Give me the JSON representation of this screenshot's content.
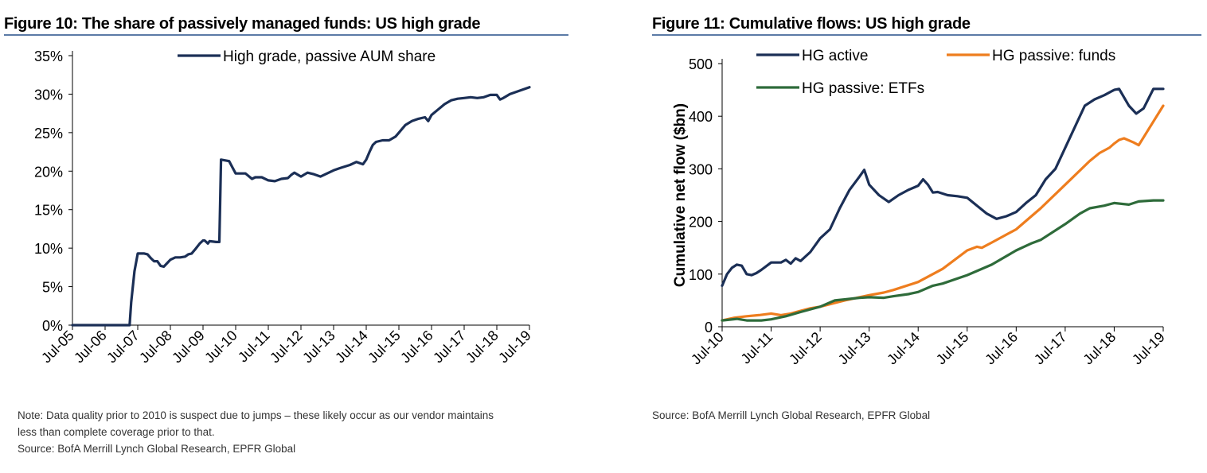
{
  "left": {
    "title": "Figure 10: The share of passively managed funds: US high grade",
    "note_lines": [
      "Note: Data quality prior to 2010 is suspect  due  to jumps – these likely occur as our vendor maintains",
      "less than complete coverage prior to that."
    ],
    "source": "Source:  BofA Merrill Lynch Global Research, EPFR Global"
  },
  "right": {
    "title": "Figure 11: Cumulative flows: US high grade",
    "source": "Source:  BofA Merrill Lynch Global Research, EPFR  Global"
  },
  "colors": {
    "navy": "#1b2f56",
    "orange": "#ee7d1e",
    "green": "#2e6b3a",
    "rule": "#5b7aa6"
  },
  "chart_data": [
    {
      "type": "line",
      "title": "Figure 10: The share of passively managed funds: US high grade",
      "xlabel": "",
      "ylabel": "",
      "x_ticks": [
        "Jul-05",
        "Jul-06",
        "Jul-07",
        "Jul-08",
        "Jul-09",
        "Jul-10",
        "Jul-11",
        "Jul-12",
        "Jul-13",
        "Jul-14",
        "Jul-15",
        "Jul-16",
        "Jul-17",
        "Jul-18",
        "Jul-19"
      ],
      "y_ticks": [
        "0%",
        "5%",
        "10%",
        "15%",
        "20%",
        "25%",
        "30%",
        "35%"
      ],
      "xlim": [
        0,
        14
      ],
      "ylim": [
        0,
        35
      ],
      "legend_position": "top",
      "series": [
        {
          "name": "High grade, passive AUM share",
          "color": "#1b2f56",
          "x": [
            0,
            1,
            1.75,
            1.8,
            1.9,
            2.0,
            2.2,
            2.3,
            2.4,
            2.5,
            2.6,
            2.7,
            2.8,
            3.0,
            3.15,
            3.3,
            3.45,
            3.55,
            3.65,
            3.75,
            3.9,
            4.0,
            4.05,
            4.1,
            4.15,
            4.2,
            4.4,
            4.5,
            4.55,
            4.8,
            5.0,
            5.1,
            5.2,
            5.3,
            5.5,
            5.6,
            5.8,
            6.0,
            6.2,
            6.4,
            6.6,
            6.7,
            6.8,
            7.0,
            7.2,
            7.4,
            7.6,
            7.8,
            8.0,
            8.2,
            8.5,
            8.7,
            8.9,
            9.0,
            9.1,
            9.2,
            9.3,
            9.5,
            9.7,
            9.9,
            10.0,
            10.2,
            10.4,
            10.6,
            10.8,
            10.9,
            11.0,
            11.2,
            11.4,
            11.6,
            11.8,
            12.0,
            12.2,
            12.4,
            12.6,
            12.8,
            13.0,
            13.1,
            13.2,
            13.4,
            13.6,
            13.8,
            14.0
          ],
          "y": [
            0,
            0,
            0,
            3,
            7,
            9.3,
            9.3,
            9.2,
            8.7,
            8.3,
            8.3,
            7.7,
            7.6,
            8.5,
            8.8,
            8.8,
            8.9,
            9.2,
            9.3,
            9.8,
            10.6,
            11.0,
            11.0,
            10.8,
            10.6,
            10.9,
            10.8,
            10.8,
            21.5,
            21.3,
            19.7,
            19.7,
            19.7,
            19.7,
            19.0,
            19.2,
            19.2,
            18.8,
            18.7,
            19.0,
            19.1,
            19.5,
            19.8,
            19.3,
            19.8,
            19.6,
            19.3,
            19.7,
            20.1,
            20.4,
            20.8,
            21.2,
            20.9,
            21.5,
            22.5,
            23.4,
            23.8,
            24.0,
            24.0,
            24.5,
            25.0,
            26.0,
            26.5,
            26.8,
            27.0,
            26.5,
            27.3,
            28.0,
            28.7,
            29.2,
            29.4,
            29.5,
            29.6,
            29.5,
            29.6,
            29.9,
            29.9,
            29.3,
            29.5,
            30.0,
            30.3,
            30.6,
            30.9
          ]
        }
      ]
    },
    {
      "type": "line",
      "title": "Figure 11: Cumulative flows: US high grade",
      "xlabel": "",
      "ylabel": "Cumulative net flow ($bn)",
      "x_ticks": [
        "Jul-10",
        "Jul-11",
        "Jul-12",
        "Jul-13",
        "Jul-14",
        "Jul-15",
        "Jul-16",
        "Jul-17",
        "Jul-18",
        "Jul-19"
      ],
      "y_ticks": [
        "0",
        "100",
        "200",
        "300",
        "400",
        "500"
      ],
      "xlim": [
        0,
        9
      ],
      "ylim": [
        0,
        500
      ],
      "legend_position": "top",
      "series": [
        {
          "name": "HG active",
          "color": "#1b2f56",
          "x": [
            0,
            0.1,
            0.2,
            0.3,
            0.4,
            0.5,
            0.6,
            0.7,
            0.8,
            1.0,
            1.2,
            1.3,
            1.4,
            1.5,
            1.6,
            1.8,
            2.0,
            2.2,
            2.4,
            2.6,
            2.8,
            2.9,
            3.0,
            3.2,
            3.4,
            3.6,
            3.8,
            4.0,
            4.1,
            4.2,
            4.3,
            4.4,
            4.6,
            4.8,
            5.0,
            5.2,
            5.4,
            5.6,
            5.8,
            6.0,
            6.2,
            6.4,
            6.6,
            6.8,
            7.0,
            7.2,
            7.4,
            7.6,
            7.8,
            8.0,
            8.1,
            8.3,
            8.45,
            8.6,
            8.8,
            9.0
          ],
          "y": [
            78,
            100,
            112,
            118,
            116,
            100,
            98,
            102,
            108,
            122,
            122,
            127,
            120,
            130,
            125,
            142,
            168,
            185,
            225,
            260,
            285,
            298,
            270,
            250,
            237,
            250,
            260,
            268,
            280,
            270,
            255,
            256,
            250,
            248,
            245,
            230,
            215,
            205,
            210,
            218,
            235,
            250,
            280,
            300,
            340,
            380,
            420,
            432,
            440,
            450,
            452,
            420,
            405,
            415,
            452,
            452
          ]
        },
        {
          "name": "HG passive: funds",
          "color": "#ee7d1e",
          "x": [
            0,
            0.25,
            0.5,
            0.75,
            1.0,
            1.2,
            1.4,
            1.6,
            1.8,
            2.0,
            2.5,
            3.0,
            3.3,
            3.5,
            4.0,
            4.5,
            5.0,
            5.2,
            5.3,
            5.5,
            6.0,
            6.5,
            7.0,
            7.5,
            7.7,
            7.9,
            8.0,
            8.1,
            8.2,
            8.4,
            8.5,
            8.6,
            8.8,
            9.0
          ],
          "y": [
            12,
            17,
            20,
            22,
            25,
            22,
            25,
            30,
            35,
            38,
            50,
            60,
            65,
            70,
            85,
            110,
            145,
            152,
            150,
            160,
            185,
            225,
            270,
            315,
            330,
            340,
            348,
            355,
            358,
            350,
            345,
            360,
            390,
            420
          ]
        },
        {
          "name": "HG passive: ETFs",
          "color": "#2e6b3a",
          "x": [
            0,
            0.3,
            0.5,
            0.8,
            1.0,
            1.3,
            1.6,
            2.0,
            2.3,
            2.5,
            2.8,
            3.0,
            3.3,
            3.5,
            3.8,
            4.0,
            4.3,
            4.5,
            5.0,
            5.5,
            6.0,
            6.3,
            6.5,
            7.0,
            7.3,
            7.5,
            7.8,
            8.0,
            8.3,
            8.5,
            8.8,
            9.0
          ],
          "y": [
            12,
            15,
            12,
            12,
            14,
            20,
            28,
            38,
            50,
            52,
            55,
            56,
            55,
            58,
            62,
            66,
            78,
            82,
            98,
            118,
            145,
            158,
            165,
            195,
            215,
            225,
            230,
            235,
            232,
            238,
            240,
            240
          ]
        }
      ]
    }
  ]
}
